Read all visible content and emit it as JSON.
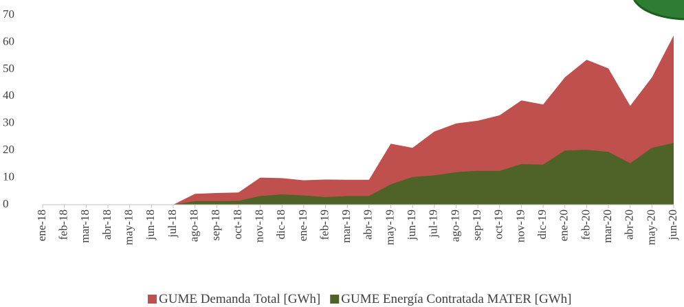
{
  "chart_data": {
    "type": "area",
    "categories": [
      "ene-18",
      "feb-18",
      "mar-18",
      "abr-18",
      "may-18",
      "jun-18",
      "jul-18",
      "ago-18",
      "sep-18",
      "oct-18",
      "nov-18",
      "dic-18",
      "ene-19",
      "feb-19",
      "mar-19",
      "abr-19",
      "may-19",
      "jun-19",
      "jul-19",
      "ago-19",
      "sep-19",
      "oct-19",
      "nov-19",
      "dic-19",
      "ene-20",
      "feb-20",
      "mar-20",
      "abr-20",
      "may-20",
      "jun-20"
    ],
    "series": [
      {
        "name": "GUME Demanda Total [GWh]",
        "color": "#c0504d",
        "values": [
          null,
          null,
          null,
          null,
          null,
          null,
          0,
          4,
          4.3,
          4.5,
          10,
          9.8,
          9,
          9.3,
          9.2,
          9.2,
          22.5,
          21,
          27,
          30,
          31,
          33,
          38.5,
          37,
          47,
          53.5,
          50.3,
          36.5,
          47,
          62.5
        ]
      },
      {
        "name": "GUME Energía Contratada MATER [GWh]",
        "color": "#4f6228",
        "values": [
          null,
          null,
          null,
          null,
          null,
          null,
          0,
          1.3,
          1.3,
          1.4,
          3.2,
          3.8,
          3.4,
          2.8,
          3.2,
          3.2,
          7.5,
          10.2,
          10.8,
          12,
          12.5,
          12.5,
          15,
          14.8,
          20,
          20.3,
          19.5,
          15.3,
          21,
          22.8
        ]
      }
    ],
    "ylim": [
      0,
      70
    ],
    "yticks": [
      0,
      10,
      20,
      30,
      40,
      50,
      60,
      70
    ],
    "grid": false,
    "legend": "bottom"
  }
}
